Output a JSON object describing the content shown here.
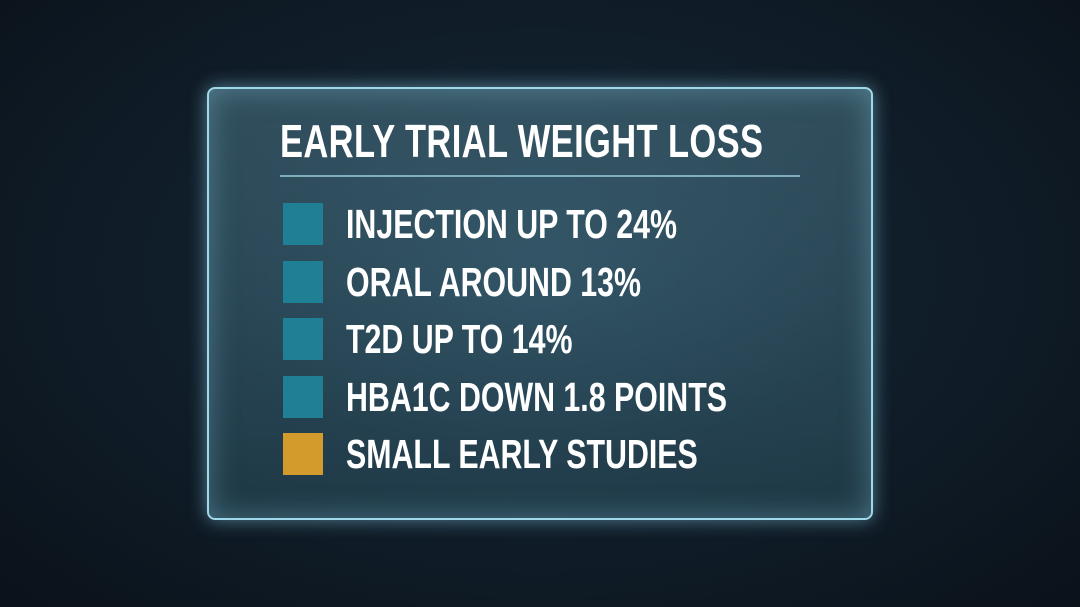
{
  "title": "EARLY TRIAL WEIGHT LOSS",
  "items": [
    {
      "label": "INJECTION UP TO 24%",
      "color": "#1f7f95"
    },
    {
      "label": "ORAL AROUND 13%",
      "color": "#1f7f95"
    },
    {
      "label": "T2D UP TO 14%",
      "color": "#1f7f95"
    },
    {
      "label": "HBA1C DOWN 1.8 POINTS",
      "color": "#1f7f95"
    },
    {
      "label": "SMALL EARLY STUDIES",
      "color": "#d39a2c"
    }
  ]
}
